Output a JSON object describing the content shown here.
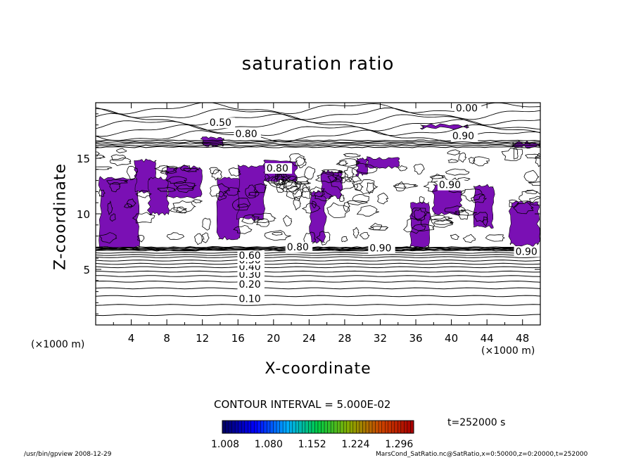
{
  "chart_data": {
    "type": "contour",
    "title": "saturation ratio",
    "xlabel": "X-coordinate",
    "ylabel": "Z-coordinate",
    "x_unit_label": "(×1000 m)",
    "y_unit_label": "(×1000 m)",
    "xlim": [
      0,
      50
    ],
    "ylim": [
      0,
      20
    ],
    "x_ticks": [
      4,
      8,
      12,
      16,
      20,
      24,
      28,
      32,
      36,
      40,
      44,
      48
    ],
    "y_ticks": [
      5,
      10,
      15
    ],
    "contour_labels": [
      "0.10",
      "0.20",
      "0.30",
      "0.40",
      "0.50",
      "0.60",
      "0.80",
      "0.90"
    ],
    "contour_interval_text": "CONTOUR INTERVAL = 5.000E-02",
    "shaded_threshold": 1.0,
    "shade_color": "#7a10b4",
    "colorbar": {
      "labels": [
        "1.008",
        "1.080",
        "1.152",
        "1.224",
        "1.296"
      ],
      "colors": [
        "#000066",
        "#0000ff",
        "#00aaff",
        "#00cc44",
        "#88aa00",
        "#cc4400",
        "#aa0000"
      ]
    },
    "time_text": "t=252000  s",
    "stable_layer_contours_km": [
      {
        "z": 0.9,
        "label": ""
      },
      {
        "z": 1.8,
        "label": ""
      },
      {
        "z": 2.6,
        "label": "0.10"
      },
      {
        "z": 3.3,
        "label": ""
      },
      {
        "z": 3.9,
        "label": "0.20"
      },
      {
        "z": 4.4,
        "label": ""
      },
      {
        "z": 4.8,
        "label": "0.30"
      },
      {
        "z": 5.2,
        "label": ""
      },
      {
        "z": 5.5,
        "label": "0.40"
      },
      {
        "z": 5.8,
        "label": ""
      },
      {
        "z": 6.1,
        "label": "0.50"
      },
      {
        "z": 6.3,
        "label": ""
      },
      {
        "z": 6.5,
        "label": "0.60"
      }
    ],
    "supersaturated_regions_km": [
      {
        "x": [
          0.5,
          4.8
        ],
        "z": [
          7.0,
          13.2
        ]
      },
      {
        "x": [
          4.5,
          6.8
        ],
        "z": [
          12.0,
          14.8
        ]
      },
      {
        "x": [
          6.0,
          8.2
        ],
        "z": [
          10.0,
          13.2
        ]
      },
      {
        "x": [
          8.0,
          11.8
        ],
        "z": [
          11.5,
          14.2
        ]
      },
      {
        "x": [
          13.8,
          16.2
        ],
        "z": [
          7.8,
          13.2
        ]
      },
      {
        "x": [
          16.0,
          19.0
        ],
        "z": [
          9.5,
          14.3
        ]
      },
      {
        "x": [
          19.0,
          22.5
        ],
        "z": [
          13.0,
          14.8
        ]
      },
      {
        "x": [
          24.2,
          25.8
        ],
        "z": [
          7.5,
          12.0
        ]
      },
      {
        "x": [
          25.5,
          27.6
        ],
        "z": [
          11.5,
          13.8
        ]
      },
      {
        "x": [
          29.4,
          30.6
        ],
        "z": [
          13.5,
          15.0
        ]
      },
      {
        "x": [
          30.5,
          34.0
        ],
        "z": [
          14.2,
          15.0
        ]
      },
      {
        "x": [
          35.5,
          37.5
        ],
        "z": [
          7.0,
          11.0
        ]
      },
      {
        "x": [
          38.0,
          41.0
        ],
        "z": [
          10.0,
          12.5
        ]
      },
      {
        "x": [
          42.5,
          44.7
        ],
        "z": [
          8.8,
          12.5
        ]
      },
      {
        "x": [
          46.6,
          49.8
        ],
        "z": [
          7.2,
          11.0
        ]
      },
      {
        "x": [
          36.7,
          41.8
        ],
        "z": [
          17.7,
          18.0
        ]
      },
      {
        "x": [
          12.0,
          14.3
        ],
        "z": [
          16.2,
          16.8
        ]
      },
      {
        "x": [
          47.0,
          50.0
        ],
        "z": [
          16.0,
          16.4
        ]
      }
    ]
  },
  "footer": {
    "left": "/usr/bin/gpview   2008-12-29",
    "right": "MarsCond_SatRatio.nc@SatRatio,x=0:50000,z=0:20000,t=252000"
  }
}
